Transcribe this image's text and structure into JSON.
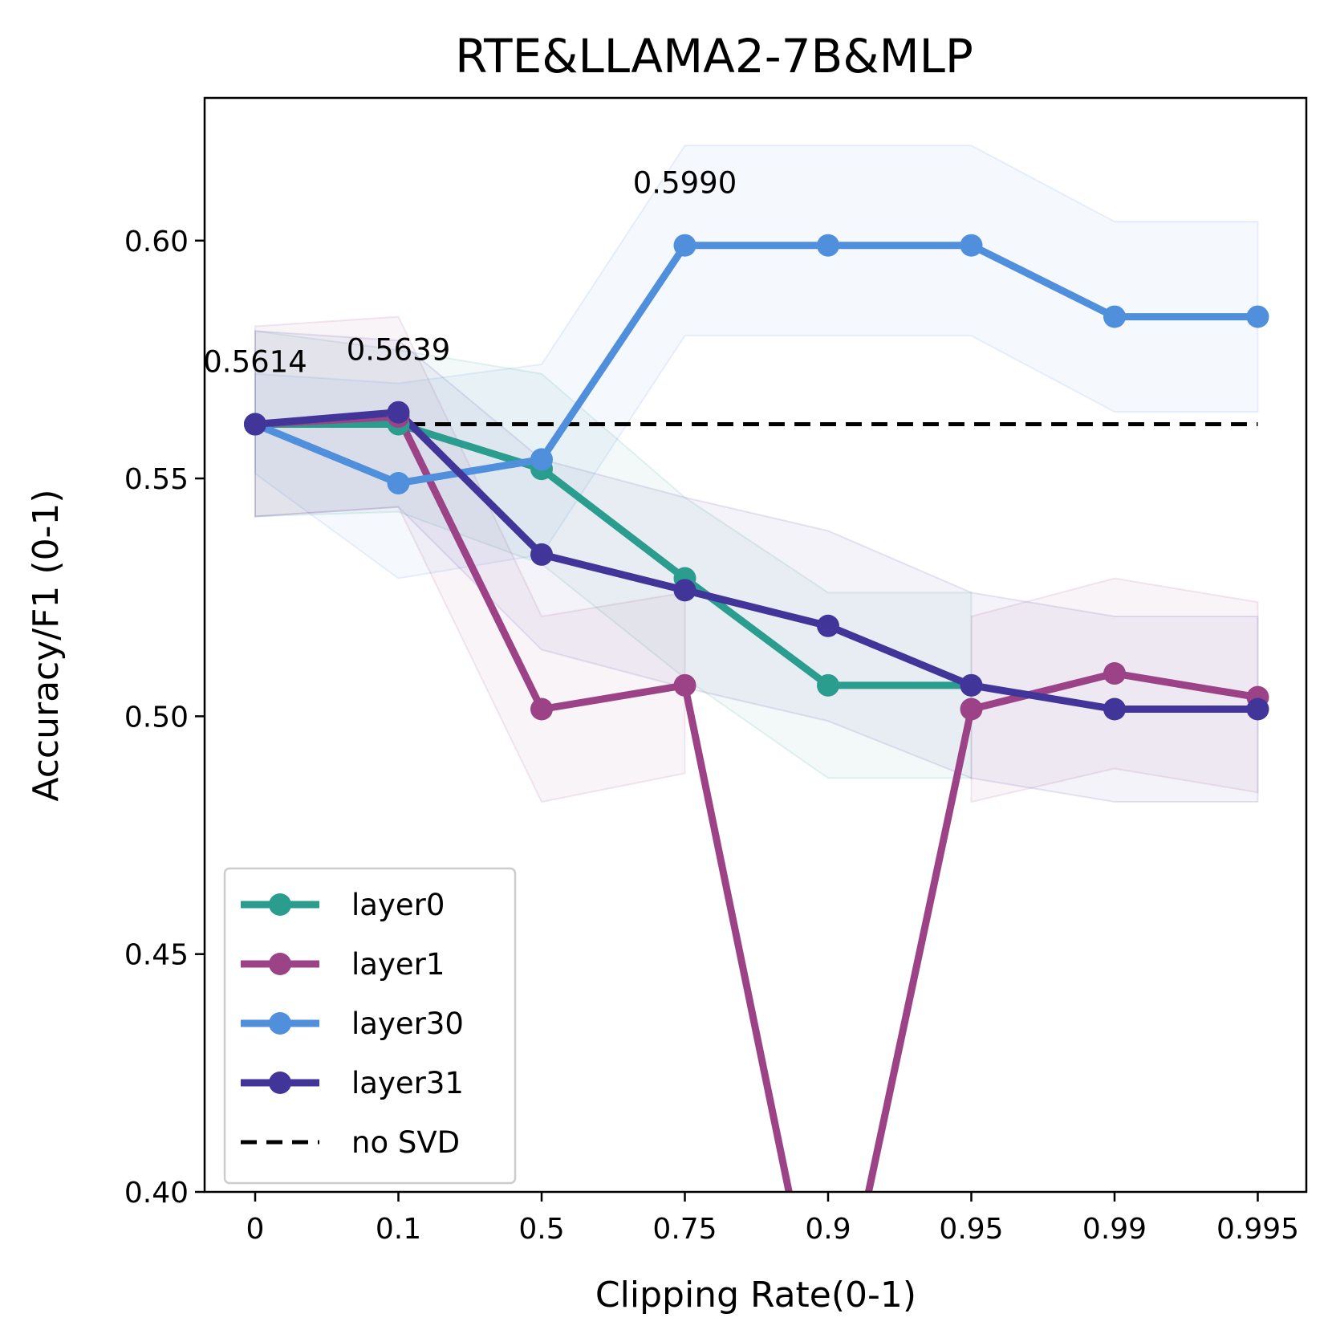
{
  "chart_data": {
    "type": "line",
    "title": "RTE&LLAMA2-7B&MLP",
    "xlabel": "Clipping Rate(0-1)",
    "ylabel": "Accuracy/F1 (0-1)",
    "categories": [
      "0",
      "0.1",
      "0.5",
      "0.75",
      "0.9",
      "0.95",
      "0.99",
      "0.995"
    ],
    "ylim": [
      0.4,
      0.63
    ],
    "yticks": [
      0.4,
      0.45,
      0.5,
      0.55,
      0.6
    ],
    "ytick_labels": [
      "0.40",
      "0.45",
      "0.50",
      "0.55",
      "0.60"
    ],
    "grid": false,
    "legend_position": "bottom-left",
    "series": [
      {
        "name": "layer0",
        "color": "#2a9d8f",
        "values": [
          0.5614,
          0.5614,
          0.552,
          0.529,
          0.5065,
          0.5065,
          null,
          null
        ],
        "band_upper": [
          0.581,
          0.577,
          0.572,
          0.546,
          0.526,
          0.526,
          null,
          null
        ],
        "band_lower": [
          0.542,
          0.543,
          0.532,
          0.508,
          0.487,
          0.487,
          null,
          null
        ]
      },
      {
        "name": "layer1",
        "color": "#9c4388",
        "values": [
          0.5614,
          0.563,
          0.5015,
          0.5065,
          0.36,
          0.5015,
          0.509,
          0.504
        ],
        "band_upper": [
          0.582,
          0.584,
          0.521,
          0.526,
          null,
          0.521,
          0.529,
          0.524
        ],
        "band_lower": [
          0.542,
          0.544,
          0.482,
          0.488,
          null,
          0.482,
          0.489,
          0.484
        ]
      },
      {
        "name": "layer30",
        "color": "#4f8fdc",
        "values": [
          0.5614,
          0.549,
          0.554,
          0.599,
          0.599,
          0.599,
          0.584,
          0.584
        ],
        "band_upper": [
          0.572,
          0.57,
          0.574,
          0.62,
          0.62,
          0.62,
          0.604,
          0.604
        ],
        "band_lower": [
          0.551,
          0.529,
          0.534,
          0.58,
          0.58,
          0.58,
          0.564,
          0.564
        ]
      },
      {
        "name": "layer31",
        "color": "#41359a",
        "values": [
          0.5614,
          0.5639,
          0.534,
          0.5265,
          0.519,
          0.5065,
          0.5015,
          0.5015
        ],
        "band_upper": [
          0.581,
          0.579,
          0.554,
          0.546,
          0.539,
          0.526,
          0.521,
          0.521
        ],
        "band_lower": [
          0.542,
          0.544,
          0.514,
          0.506,
          0.499,
          0.487,
          0.482,
          0.482
        ]
      }
    ],
    "reference_line": {
      "name": "no SVD",
      "value": 0.5614,
      "color": "#000000",
      "style": "dashed"
    },
    "annotations": [
      {
        "text": "0.5614",
        "x": "0",
        "y": 0.5614
      },
      {
        "text": "0.5639",
        "x": "0.1",
        "y": 0.5639
      },
      {
        "text": "0.5990",
        "x": "0.75",
        "y": 0.599
      }
    ]
  }
}
